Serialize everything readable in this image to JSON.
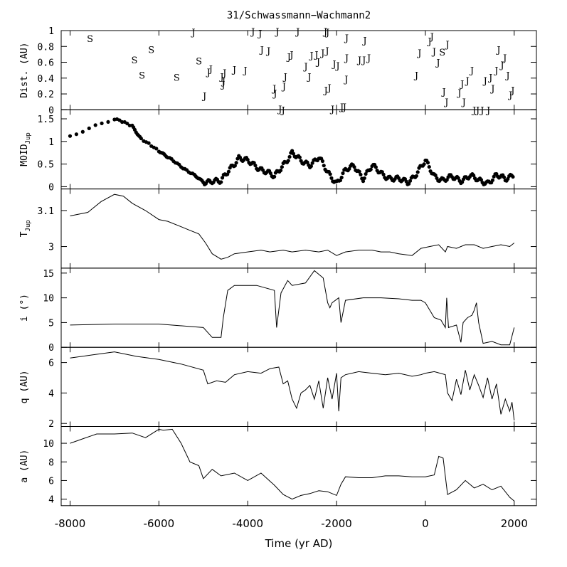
{
  "chart_data": {
    "type": "line",
    "title": "31/Schwassmann−Wachmann2",
    "xlabel": "Time (yr AD)",
    "x_ticks": [
      "-8000",
      "-6000",
      "-4000",
      "-2000",
      "0",
      "2000"
    ],
    "xlim": [
      -8200,
      2500
    ],
    "panels": [
      {
        "id": "dist",
        "type": "scatter-text",
        "ylabel": "Dist. (AU)",
        "ylim": [
          0,
          1
        ],
        "yticks": [
          0,
          0.2,
          0.4,
          0.6,
          0.8,
          1
        ],
        "ytick_labels": [
          "0",
          "0.2",
          "0.4",
          "0.6",
          "0.8",
          "1"
        ],
        "points": [
          {
            "x": -7550,
            "y": 0.9,
            "m": "S"
          },
          {
            "x": -6550,
            "y": 0.63,
            "m": "S"
          },
          {
            "x": -6380,
            "y": 0.44,
            "m": "S"
          },
          {
            "x": -6170,
            "y": 0.76,
            "m": "S"
          },
          {
            "x": -5600,
            "y": 0.41,
            "m": "S"
          },
          {
            "x": -5100,
            "y": 0.62,
            "m": "S"
          },
          {
            "x": -5220,
            "y": 0.98,
            "m": "J"
          },
          {
            "x": -4970,
            "y": 0.18,
            "m": "J"
          },
          {
            "x": -4880,
            "y": 0.48,
            "m": "J"
          },
          {
            "x": -4830,
            "y": 0.52,
            "m": "J"
          },
          {
            "x": -4580,
            "y": 0.42,
            "m": "J"
          },
          {
            "x": -4550,
            "y": 0.32,
            "m": "J"
          },
          {
            "x": -4540,
            "y": 0.36,
            "m": "J"
          },
          {
            "x": -4520,
            "y": 0.47,
            "m": "J"
          },
          {
            "x": -4300,
            "y": 0.51,
            "m": "J"
          },
          {
            "x": -4050,
            "y": 0.5,
            "m": "J"
          },
          {
            "x": -3880,
            "y": 0.99,
            "m": "J"
          },
          {
            "x": -3720,
            "y": 0.97,
            "m": "J"
          },
          {
            "x": -3680,
            "y": 0.76,
            "m": "J"
          },
          {
            "x": -3530,
            "y": 0.75,
            "m": "J"
          },
          {
            "x": -3330,
            "y": 0.99,
            "m": "J"
          },
          {
            "x": -3400,
            "y": 0.27,
            "m": "J"
          },
          {
            "x": -3380,
            "y": 0.21,
            "m": "J"
          },
          {
            "x": -3180,
            "y": 0.3,
            "m": "J"
          },
          {
            "x": -3070,
            "y": 0.67,
            "m": "J"
          },
          {
            "x": -3010,
            "y": 0.7,
            "m": "J"
          },
          {
            "x": -3270,
            "y": 0.01,
            "m": "J"
          },
          {
            "x": -3200,
            "y": 0.0,
            "m": "J"
          },
          {
            "x": -3150,
            "y": 0.42,
            "m": "J"
          },
          {
            "x": -2870,
            "y": 0.99,
            "m": "J"
          },
          {
            "x": -2690,
            "y": 0.55,
            "m": "J"
          },
          {
            "x": -2610,
            "y": 0.42,
            "m": "J"
          },
          {
            "x": -2560,
            "y": 0.69,
            "m": "J"
          },
          {
            "x": -2450,
            "y": 0.7,
            "m": "J"
          },
          {
            "x": -2410,
            "y": 0.61,
            "m": "J"
          },
          {
            "x": -2310,
            "y": 0.72,
            "m": "J"
          },
          {
            "x": -2250,
            "y": 0.99,
            "m": "J"
          },
          {
            "x": -2200,
            "y": 0.98,
            "m": "J"
          },
          {
            "x": -2210,
            "y": 0.75,
            "m": "J"
          },
          {
            "x": -2240,
            "y": 0.25,
            "m": "J"
          },
          {
            "x": -2160,
            "y": 0.28,
            "m": "J"
          },
          {
            "x": -2090,
            "y": 0.01,
            "m": "J"
          },
          {
            "x": -2050,
            "y": 0.58,
            "m": "J"
          },
          {
            "x": -1970,
            "y": 0.56,
            "m": "J"
          },
          {
            "x": -1880,
            "y": 0.04,
            "m": "J"
          },
          {
            "x": -1820,
            "y": 0.04,
            "m": "J"
          },
          {
            "x": -1770,
            "y": 0.66,
            "m": "J"
          },
          {
            "x": -1770,
            "y": 0.91,
            "m": "J"
          },
          {
            "x": -1780,
            "y": 0.39,
            "m": "J"
          },
          {
            "x": -1480,
            "y": 0.63,
            "m": "J"
          },
          {
            "x": -1380,
            "y": 0.63,
            "m": "J"
          },
          {
            "x": -1360,
            "y": 0.88,
            "m": "J"
          },
          {
            "x": -1270,
            "y": 0.66,
            "m": "J"
          },
          {
            "x": -200,
            "y": 0.44,
            "m": "J"
          },
          {
            "x": -130,
            "y": 0.72,
            "m": "J"
          },
          {
            "x": 100,
            "y": 0.87,
            "m": "J"
          },
          {
            "x": 150,
            "y": 0.93,
            "m": "J"
          },
          {
            "x": 200,
            "y": 0.74,
            "m": "J"
          },
          {
            "x": 290,
            "y": 0.6,
            "m": "J"
          },
          {
            "x": 380,
            "y": 0.73,
            "m": "S"
          },
          {
            "x": 420,
            "y": 0.23,
            "m": "J"
          },
          {
            "x": 480,
            "y": 0.1,
            "m": "J"
          },
          {
            "x": 500,
            "y": 0.83,
            "m": "J"
          },
          {
            "x": 770,
            "y": 0.22,
            "m": "J"
          },
          {
            "x": 830,
            "y": 0.33,
            "m": "J"
          },
          {
            "x": 870,
            "y": 0.1,
            "m": "J"
          },
          {
            "x": 950,
            "y": 0.37,
            "m": "J"
          },
          {
            "x": 1050,
            "y": 0.5,
            "m": "J"
          },
          {
            "x": 1100,
            "y": 0.0,
            "m": "J"
          },
          {
            "x": 1180,
            "y": 0.0,
            "m": "J"
          },
          {
            "x": 1280,
            "y": 0.0,
            "m": "J"
          },
          {
            "x": 1350,
            "y": 0.37,
            "m": "J"
          },
          {
            "x": 1420,
            "y": 0.0,
            "m": "J"
          },
          {
            "x": 1470,
            "y": 0.41,
            "m": "J"
          },
          {
            "x": 1520,
            "y": 0.27,
            "m": "J"
          },
          {
            "x": 1600,
            "y": 0.5,
            "m": "J"
          },
          {
            "x": 1650,
            "y": 0.76,
            "m": "J"
          },
          {
            "x": 1730,
            "y": 0.57,
            "m": "J"
          },
          {
            "x": 1790,
            "y": 0.66,
            "m": "J"
          },
          {
            "x": 1860,
            "y": 0.44,
            "m": "J"
          },
          {
            "x": 1920,
            "y": 0.19,
            "m": "J"
          },
          {
            "x": 1970,
            "y": 0.25,
            "m": "J"
          }
        ]
      },
      {
        "id": "moid",
        "type": "scatter",
        "ylabel": "MOID",
        "ylabel_sub": "Jup",
        "ylim": [
          -0.05,
          1.7
        ],
        "yticks": [
          0,
          0.5,
          1,
          1.5
        ],
        "ytick_labels": [
          "0",
          "0.5",
          "1",
          "1.5"
        ],
        "x": [
          -8000,
          -7000,
          -6600,
          -6400,
          -6000,
          -5800,
          -5500,
          -5200,
          -5000,
          -4800,
          -4600,
          -4400,
          -4200,
          -4000,
          -3800,
          -3600,
          -3400,
          -3200,
          -3000,
          -2800,
          -2600,
          -2400,
          -2200,
          -2000,
          -1800,
          -1600,
          -1400,
          -1200,
          -1000,
          -800,
          -600,
          -400,
          -200,
          0,
          200,
          400,
          600,
          800,
          1000,
          1200,
          1400,
          1600,
          1800,
          2000
        ],
        "y": [
          1.12,
          1.5,
          1.35,
          1.05,
          0.8,
          0.65,
          0.45,
          0.25,
          0.1,
          0.15,
          0.1,
          0.4,
          0.65,
          0.55,
          0.45,
          0.35,
          0.2,
          0.5,
          0.75,
          0.55,
          0.5,
          0.65,
          0.3,
          0.1,
          0.35,
          0.45,
          0.2,
          0.45,
          0.3,
          0.2,
          0.15,
          0.1,
          0.3,
          0.55,
          0.25,
          0.15,
          0.2,
          0.15,
          0.25,
          0.12,
          0.1,
          0.25,
          0.15,
          0.3
        ]
      },
      {
        "id": "tjup",
        "type": "line",
        "ylabel": "T",
        "ylabel_sub": "Jup",
        "ylim": [
          2.94,
          3.16
        ],
        "yticks": [
          3,
          3.1
        ],
        "ytick_labels": [
          "3",
          "3.1"
        ],
        "x": [
          -8000,
          -7600,
          -7300,
          -7000,
          -6800,
          -6600,
          -6300,
          -6000,
          -5800,
          -5500,
          -5300,
          -5100,
          -4950,
          -4800,
          -4600,
          -4450,
          -4300,
          -4000,
          -3700,
          -3500,
          -3200,
          -3000,
          -2700,
          -2400,
          -2200,
          -2000,
          -1800,
          -1500,
          -1200,
          -1000,
          -800,
          -600,
          -300,
          -100,
          100,
          300,
          450,
          500,
          700,
          900,
          1100,
          1300,
          1500,
          1700,
          1900,
          2000
        ],
        "y": [
          3.085,
          3.095,
          3.125,
          3.145,
          3.14,
          3.12,
          3.1,
          3.075,
          3.07,
          3.055,
          3.045,
          3.035,
          3.01,
          2.98,
          2.965,
          2.97,
          2.98,
          2.985,
          2.99,
          2.985,
          2.99,
          2.985,
          2.99,
          2.985,
          2.99,
          2.975,
          2.985,
          2.99,
          2.99,
          2.985,
          2.985,
          2.98,
          2.975,
          2.995,
          3.0,
          3.005,
          2.985,
          3.0,
          2.995,
          3.005,
          3.005,
          2.995,
          3.0,
          3.005,
          3.0,
          3.01
        ]
      },
      {
        "id": "incl",
        "type": "line",
        "ylabel": "i (°)",
        "ylim": [
          0,
          16
        ],
        "yticks": [
          0,
          5,
          10,
          15
        ],
        "ytick_labels": [
          "0",
          "5",
          "10",
          "15"
        ],
        "x": [
          -8000,
          -7000,
          -6000,
          -5000,
          -4800,
          -4600,
          -4550,
          -4450,
          -4300,
          -3800,
          -3400,
          -3350,
          -3250,
          -3100,
          -3000,
          -2700,
          -2500,
          -2300,
          -2200,
          -2150,
          -2100,
          -1950,
          -1900,
          -1800,
          -1400,
          -1000,
          -600,
          -300,
          -100,
          0,
          200,
          350,
          450,
          480,
          520,
          700,
          800,
          850,
          950,
          1050,
          1100,
          1150,
          1200,
          1300,
          1500,
          1700,
          1900,
          2000
        ],
        "y": [
          4.5,
          4.7,
          4.7,
          4.0,
          2.0,
          2.0,
          6.0,
          11.5,
          12.5,
          12.5,
          11.5,
          4.0,
          11.0,
          13.5,
          12.5,
          13.0,
          15.5,
          14.0,
          9.0,
          8.0,
          9.0,
          10.0,
          5.0,
          9.5,
          10.0,
          10.0,
          9.8,
          9.5,
          9.5,
          9.0,
          6.0,
          5.5,
          4.0,
          10.0,
          4.0,
          4.5,
          1.0,
          5.0,
          6.0,
          6.5,
          7.5,
          9.0,
          5.0,
          0.8,
          1.2,
          0.5,
          0.5,
          4.0
        ]
      },
      {
        "id": "q",
        "type": "line",
        "ylabel": "q (AU)",
        "ylim": [
          1.8,
          7.0
        ],
        "yticks": [
          2,
          4,
          6
        ],
        "ytick_labels": [
          "2",
          "4",
          "6"
        ],
        "x": [
          -8000,
          -7500,
          -7000,
          -6500,
          -6000,
          -5500,
          -5000,
          -4900,
          -4700,
          -4500,
          -4300,
          -4000,
          -3700,
          -3500,
          -3300,
          -3200,
          -3100,
          -3000,
          -2900,
          -2800,
          -2700,
          -2600,
          -2500,
          -2400,
          -2300,
          -2200,
          -2100,
          -2000,
          -1950,
          -1900,
          -1800,
          -1500,
          -1200,
          -900,
          -600,
          -300,
          -100,
          0,
          200,
          450,
          500,
          600,
          700,
          800,
          900,
          1000,
          1100,
          1200,
          1300,
          1400,
          1500,
          1600,
          1700,
          1800,
          1900,
          1950,
          2000
        ],
        "y": [
          6.3,
          6.5,
          6.7,
          6.4,
          6.2,
          5.9,
          5.5,
          4.6,
          4.8,
          4.7,
          5.2,
          5.4,
          5.3,
          5.6,
          5.7,
          4.6,
          4.8,
          3.6,
          3.0,
          4.0,
          4.2,
          4.5,
          3.6,
          4.8,
          3.0,
          5.0,
          3.6,
          5.3,
          2.8,
          5.0,
          5.2,
          5.4,
          5.3,
          5.2,
          5.3,
          5.1,
          5.2,
          5.3,
          5.4,
          5.2,
          4.0,
          3.5,
          4.9,
          3.9,
          5.5,
          4.2,
          5.2,
          4.5,
          3.7,
          5.0,
          3.6,
          4.6,
          2.6,
          3.6,
          2.8,
          3.4,
          2.2
        ]
      },
      {
        "id": "a",
        "type": "line",
        "ylabel": "a (AU)",
        "ylim": [
          3.3,
          11.8
        ],
        "yticks": [
          4,
          6,
          8,
          10
        ],
        "ytick_labels": [
          "4",
          "6",
          "8",
          "10"
        ],
        "x": [
          -8000,
          -7700,
          -7400,
          -7000,
          -6600,
          -6300,
          -6000,
          -5900,
          -5700,
          -5500,
          -5300,
          -5100,
          -5000,
          -4800,
          -4600,
          -4300,
          -4000,
          -3700,
          -3400,
          -3200,
          -3000,
          -2800,
          -2600,
          -2400,
          -2200,
          -2000,
          -1900,
          -1800,
          -1500,
          -1200,
          -900,
          -600,
          -300,
          0,
          200,
          300,
          400,
          500,
          700,
          900,
          1100,
          1300,
          1500,
          1700,
          1900,
          2000
        ],
        "y": [
          10.0,
          10.5,
          11.0,
          11.0,
          11.1,
          10.6,
          11.5,
          11.4,
          11.5,
          10.0,
          8.0,
          7.6,
          6.2,
          7.2,
          6.5,
          6.8,
          6.0,
          6.8,
          5.5,
          4.5,
          4.0,
          4.4,
          4.6,
          4.9,
          4.8,
          4.4,
          5.6,
          6.4,
          6.3,
          6.3,
          6.5,
          6.5,
          6.4,
          6.4,
          6.6,
          8.6,
          8.4,
          4.5,
          5.0,
          6.0,
          5.2,
          5.6,
          5.0,
          5.4,
          4.2,
          3.8
        ]
      }
    ]
  }
}
